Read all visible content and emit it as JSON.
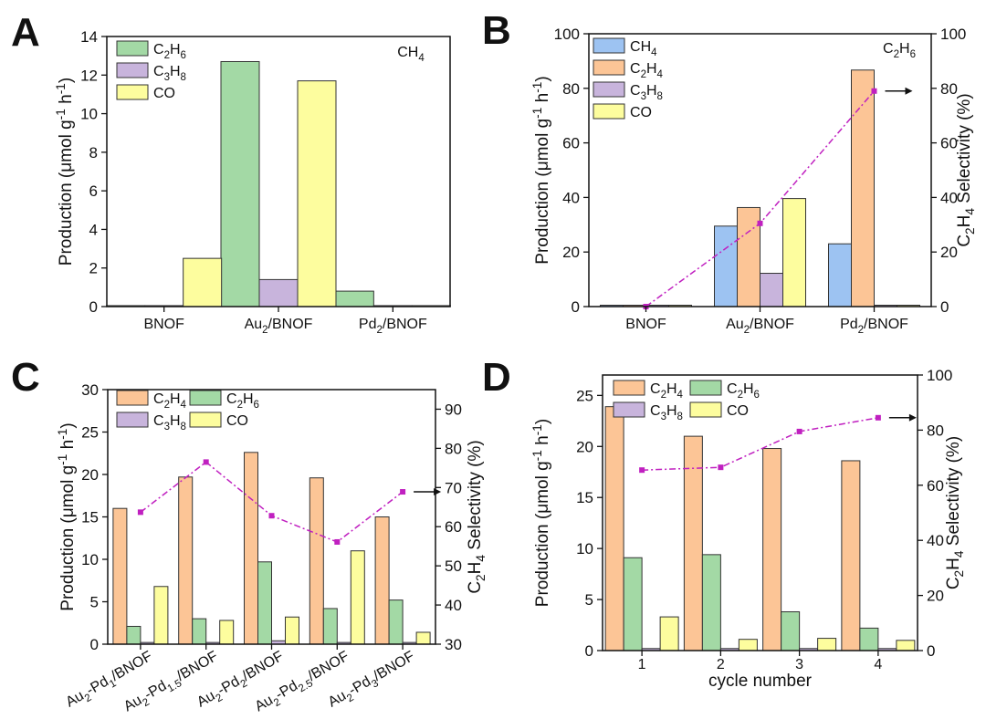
{
  "chart_data": [
    {
      "panel": "A",
      "type": "bar",
      "note": "CH4",
      "categories": [
        "BNOF",
        "Au2/BNOF",
        "Pd2/BNOF"
      ],
      "series": [
        {
          "name": "C2H6",
          "color": "#a3d9a5",
          "values": [
            0.05,
            12.7,
            0.8
          ]
        },
        {
          "name": "C3H8",
          "color": "#c8b4dc",
          "values": [
            0.05,
            1.4,
            0.05
          ]
        },
        {
          "name": "CO",
          "color": "#fdfd9e",
          "values": [
            2.5,
            11.7,
            0.05
          ]
        }
      ],
      "ylabel": "Production (μmol g-1 h-1)",
      "ylim": [
        0,
        14
      ],
      "yticks": [
        0,
        2,
        4,
        6,
        8,
        10,
        12,
        14
      ]
    },
    {
      "panel": "B",
      "type": "bar",
      "note": "C2H6",
      "categories": [
        "BNOF",
        "Au2/BNOF",
        "Pd2/BNOF"
      ],
      "series": [
        {
          "name": "CH4",
          "color": "#9dc3f2",
          "values": [
            0.5,
            29.5,
            23
          ]
        },
        {
          "name": "C2H4",
          "color": "#fcc596",
          "values": [
            0.5,
            36.3,
            86.7
          ]
        },
        {
          "name": "C3H8",
          "color": "#c8b4dc",
          "values": [
            0.5,
            12.2,
            0.5
          ]
        },
        {
          "name": "CO",
          "color": "#fdfd9e",
          "values": [
            0.5,
            39.6,
            0.5
          ]
        }
      ],
      "ylabel": "Production (μmol g-1 h-1)",
      "ylim": [
        0,
        100
      ],
      "yticks": [
        0,
        20,
        40,
        60,
        80,
        100
      ],
      "y2label": "C2H4 Selectivity (%)",
      "y2lim": [
        0,
        100
      ],
      "y2ticks": [
        0,
        20,
        40,
        60,
        80,
        100
      ],
      "selectivity": [
        0,
        30.5,
        79
      ],
      "selectivity_color": "#c020c0"
    },
    {
      "panel": "C",
      "type": "bar",
      "categories": [
        "Au2-Pd1/BNOF",
        "Au2-Pd1.5/BNOF",
        "Au2-Pd2/BNOF",
        "Au2-Pd2.5/BNOF",
        "Au2-Pd3/BNOF"
      ],
      "series": [
        {
          "name": "C2H4",
          "color": "#fcc596",
          "values": [
            16,
            19.7,
            22.6,
            19.6,
            15
          ]
        },
        {
          "name": "C2H6",
          "color": "#a3d9a5",
          "values": [
            2.1,
            3,
            9.7,
            4.2,
            5.2
          ]
        },
        {
          "name": "C3H8",
          "color": "#c8b4dc",
          "values": [
            0.2,
            0.2,
            0.4,
            0.2,
            0.2
          ]
        },
        {
          "name": "CO",
          "color": "#fdfd9e",
          "values": [
            6.8,
            2.8,
            3.2,
            11,
            1.4
          ]
        }
      ],
      "ylabel": "Production (μmol g-1 h-1)",
      "ylim": [
        0,
        30
      ],
      "yticks": [
        0,
        5,
        10,
        15,
        20,
        25,
        30
      ],
      "y2label": "C2H4 Selectivity (%)",
      "y2lim": [
        30,
        95
      ],
      "y2ticks": [
        30,
        40,
        50,
        60,
        70,
        80,
        90
      ],
      "selectivity": [
        63.7,
        76.5,
        62.8,
        56.1,
        68.9
      ],
      "selectivity_color": "#c020c0"
    },
    {
      "panel": "D",
      "type": "bar",
      "categories": [
        "1",
        "2",
        "3",
        "4"
      ],
      "xlabel": "cycle number",
      "series": [
        {
          "name": "C2H4",
          "color": "#fcc596",
          "values": [
            23.9,
            21,
            19.8,
            18.6
          ]
        },
        {
          "name": "C2H6",
          "color": "#a3d9a5",
          "values": [
            9.1,
            9.4,
            3.8,
            2.2
          ]
        },
        {
          "name": "C3H8",
          "color": "#c8b4dc",
          "values": [
            0.2,
            0.2,
            0.2,
            0.2
          ]
        },
        {
          "name": "CO",
          "color": "#fdfd9e",
          "values": [
            3.3,
            1.1,
            1.2,
            1
          ]
        }
      ],
      "ylabel": "Production (μmol g-1 h-1)",
      "ylim": [
        0,
        27
      ],
      "yticks": [
        0,
        5,
        10,
        15,
        20,
        25
      ],
      "y2label": "C2H4 Selectivity (%)",
      "y2lim": [
        0,
        100
      ],
      "y2ticks": [
        0,
        20,
        40,
        60,
        80,
        100
      ],
      "selectivity": [
        65.5,
        66.5,
        79.5,
        84.5
      ],
      "selectivity_color": "#c020c0"
    }
  ]
}
